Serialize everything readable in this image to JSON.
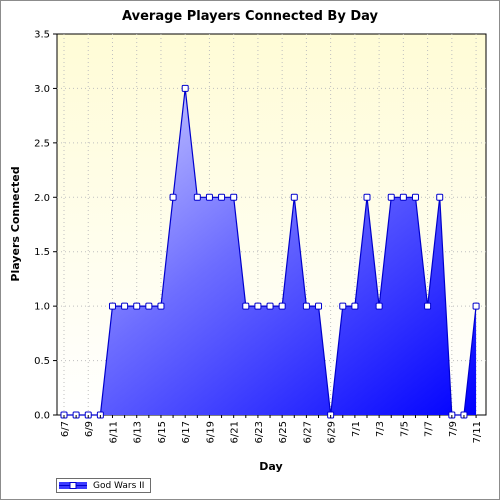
{
  "chart_data": {
    "type": "area",
    "title": "Average Players Connected By Day",
    "xlabel": "Day",
    "ylabel": "Players Connected",
    "ylim": [
      0,
      3.5
    ],
    "yticks": [
      "0.0",
      "0.5",
      "1.0",
      "1.5",
      "2.0",
      "2.5",
      "3.0",
      "3.5"
    ],
    "x": [
      "6/7",
      "6/8",
      "6/9",
      "6/10",
      "6/11",
      "6/12",
      "6/13",
      "6/14",
      "6/15",
      "6/16",
      "6/17",
      "6/18",
      "6/19",
      "6/20",
      "6/21",
      "6/22",
      "6/23",
      "6/24",
      "6/25",
      "6/26",
      "6/27",
      "6/28",
      "6/29",
      "6/30",
      "7/1",
      "7/2",
      "7/3",
      "7/4",
      "7/5",
      "7/6",
      "7/7",
      "7/8",
      "7/9",
      "7/10",
      "7/11"
    ],
    "xtick_labels": [
      "6/7",
      "6/9",
      "6/11",
      "6/13",
      "6/15",
      "6/17",
      "6/19",
      "6/21",
      "6/23",
      "6/25",
      "6/27",
      "6/29",
      "7/1",
      "7/3",
      "7/5",
      "7/7",
      "7/9",
      "7/11"
    ],
    "series": [
      {
        "name": "God Wars II",
        "values": [
          0,
          0,
          0,
          0,
          1,
          1,
          1,
          1,
          1,
          2,
          3,
          2,
          2,
          2,
          2,
          1,
          1,
          1,
          1,
          2,
          1,
          1,
          0,
          1,
          1,
          2,
          1,
          2,
          2,
          2,
          1,
          2,
          0,
          0,
          1
        ]
      }
    ],
    "grid": true,
    "legend_position": "bottom-left",
    "colors": {
      "area_top": "#c0c0ff",
      "area_bottom": "#0000ff",
      "line": "#0000cc",
      "marker_fill": "#ffffff",
      "plot_bg_top": "#fffcd6",
      "plot_bg_bottom": "#ffffff",
      "grid": "#bfbfbf"
    }
  }
}
